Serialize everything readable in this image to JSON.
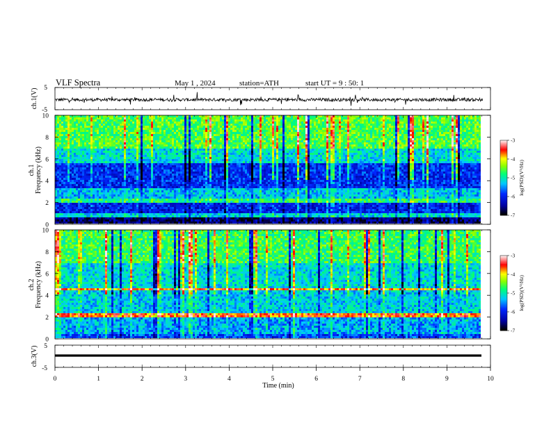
{
  "header": {
    "title": "VLF Spectra",
    "date": "May 1 , 2024",
    "station": "station=ATH",
    "start_ut": "start UT = 9 : 50: 1"
  },
  "chart_data": [
    {
      "type": "line",
      "id": "ch1-waveform",
      "ylabel": "ch.1(V)",
      "ylim": [
        -5,
        5
      ],
      "y_ticks": [
        "5",
        "-5"
      ],
      "x_range": [
        0,
        9.82
      ],
      "description_of_trace": "noisy waveform centred near -0.5 V with spikes to about +2.5 / -3 V"
    },
    {
      "type": "heatmap",
      "id": "ch1-spectrogram",
      "ylabel": "ch.1\nFrequency (kHz)",
      "ylabel_lines": [
        "ch.1",
        "Frequency (kHz)"
      ],
      "ylim": [
        0,
        10
      ],
      "y_ticks": [
        "0",
        "2",
        "4",
        "6",
        "8",
        "10"
      ],
      "colorbar": {
        "label": "log(PSD)(V²/Hz)",
        "range": [
          -7,
          -3
        ],
        "ticks": [
          "-3",
          "-4",
          "-5",
          "-6",
          "-7"
        ],
        "colors": [
          "#ffffff",
          "#ff0000",
          "#ffff00",
          "#00ff00",
          "#00ffff",
          "#0000ff",
          "#000000"
        ]
      }
    },
    {
      "type": "heatmap",
      "id": "ch2-spectrogram",
      "ylabel": "ch.2\nFrequency (kHz)",
      "ylabel_lines": [
        "ch.2",
        "Frequency (kHz)"
      ],
      "ylim": [
        0,
        10
      ],
      "y_ticks": [
        "0",
        "2",
        "4",
        "6",
        "8",
        "10"
      ],
      "colorbar": {
        "label": "log(PSD)(V²/Hz)",
        "range": [
          -7,
          -3
        ],
        "ticks": [
          "-3",
          "-4",
          "-5",
          "-6",
          "-7"
        ],
        "colors": [
          "#ffffff",
          "#ff0000",
          "#ffff00",
          "#00ff00",
          "#00ffff",
          "#0000ff",
          "#000000"
        ]
      }
    },
    {
      "type": "line",
      "id": "ch3-waveform",
      "ylabel": "ch.3(V)",
      "ylim": [
        -5,
        5
      ],
      "y_ticks": [
        "5",
        "-5"
      ],
      "x_range": [
        0,
        9.82
      ],
      "description_of_trace": "flat thick line near -1.5 V"
    }
  ],
  "x_axis": {
    "label": "Time (min)",
    "range": [
      0,
      10
    ],
    "ticks": [
      "0",
      "1",
      "2",
      "3",
      "4",
      "5",
      "6",
      "7",
      "8",
      "9",
      "10"
    ]
  },
  "colors": {
    "background": "#ffffff",
    "axis": "#000000"
  }
}
